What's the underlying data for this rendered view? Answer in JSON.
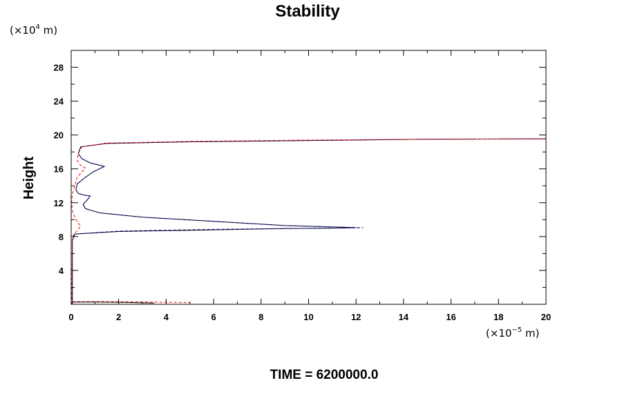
{
  "chart_data": {
    "type": "line",
    "title": "Stability",
    "ylabel": "Height",
    "y_unit_prefix": "(×10",
    "y_unit_exp": "4",
    "y_unit_suffix": " m)",
    "x_unit_prefix": "(×10",
    "x_unit_exp": "−5",
    "x_unit_suffix": " m)",
    "footer": "TIME = 6200000.0",
    "xlim": [
      0,
      20
    ],
    "ylim": [
      0,
      30
    ],
    "x_ticks": [
      0,
      2,
      4,
      6,
      8,
      10,
      12,
      14,
      16,
      18,
      20
    ],
    "y_ticks": [
      4,
      8,
      12,
      16,
      20,
      24,
      28
    ],
    "grid": false,
    "series": [
      {
        "color": "#000000",
        "style": "solid",
        "points": [
          [
            0.05,
            0
          ],
          [
            0.05,
            7.5
          ],
          [
            0.15,
            8.3
          ],
          [
            2,
            8.6
          ],
          [
            6,
            8.8
          ],
          [
            9,
            8.95
          ],
          [
            11,
            9.0
          ],
          [
            12,
            9.05
          ],
          [
            11.5,
            9.1
          ],
          [
            9,
            9.3
          ],
          [
            6,
            9.8
          ],
          [
            3,
            10.3
          ],
          [
            1.2,
            10.8
          ],
          [
            0.6,
            11.3
          ],
          [
            0.5,
            11.8
          ],
          [
            0.7,
            12.4
          ],
          [
            0.8,
            12.8
          ],
          [
            0.55,
            12.9
          ],
          [
            0.3,
            13.1
          ],
          [
            0.2,
            13.5
          ],
          [
            0.25,
            14.2
          ],
          [
            0.5,
            14.8
          ],
          [
            0.9,
            15.6
          ],
          [
            1.4,
            16.3
          ],
          [
            0.8,
            16.7
          ],
          [
            0.45,
            17.2
          ],
          [
            0.3,
            17.8
          ],
          [
            0.4,
            18.6
          ],
          [
            1.5,
            19.0
          ],
          [
            5,
            19.2
          ],
          [
            10,
            19.35
          ],
          [
            15,
            19.5
          ],
          [
            20,
            19.55
          ]
        ]
      },
      {
        "color": "#00008b",
        "style": "dashed",
        "points": [
          [
            0.05,
            0
          ],
          [
            0.05,
            7.5
          ],
          [
            0.15,
            8.3
          ],
          [
            2,
            8.65
          ],
          [
            6,
            8.85
          ],
          [
            9,
            8.95
          ],
          [
            11,
            9.0
          ],
          [
            12.3,
            9.05
          ],
          [
            11.5,
            9.1
          ],
          [
            9,
            9.3
          ],
          [
            6,
            9.8
          ],
          [
            3,
            10.3
          ],
          [
            1.2,
            10.8
          ],
          [
            0.6,
            11.3
          ],
          [
            0.5,
            11.8
          ],
          [
            0.7,
            12.4
          ],
          [
            0.8,
            12.8
          ],
          [
            0.55,
            12.9
          ],
          [
            0.3,
            13.1
          ],
          [
            0.2,
            13.5
          ],
          [
            0.25,
            14.2
          ],
          [
            0.5,
            14.8
          ],
          [
            0.9,
            15.6
          ],
          [
            1.4,
            16.3
          ],
          [
            0.8,
            16.7
          ],
          [
            0.45,
            17.2
          ],
          [
            0.3,
            17.8
          ],
          [
            0.4,
            18.6
          ],
          [
            1.5,
            19.0
          ],
          [
            5,
            19.2
          ],
          [
            10,
            19.35
          ],
          [
            15,
            19.5
          ],
          [
            20,
            19.55
          ]
        ]
      },
      {
        "color": "#00008b",
        "style": "dashed",
        "points": [
          [
            0.0,
            0
          ],
          [
            0.0,
            30
          ]
        ]
      },
      {
        "color": "#ff0000",
        "style": "dashed",
        "points": [
          [
            0.02,
            0
          ],
          [
            0.05,
            8
          ],
          [
            0.4,
            9.2
          ],
          [
            0.2,
            10
          ],
          [
            0.05,
            11
          ],
          [
            0.02,
            12
          ],
          [
            0.05,
            13
          ],
          [
            0.15,
            14
          ],
          [
            0.25,
            15
          ],
          [
            0.6,
            16.1
          ],
          [
            0.4,
            16.4
          ],
          [
            0.25,
            17
          ],
          [
            0.3,
            17.8
          ],
          [
            0.45,
            18.6
          ],
          [
            1.5,
            19.05
          ],
          [
            5,
            19.25
          ],
          [
            10,
            19.4
          ],
          [
            15,
            19.5
          ],
          [
            20,
            19.55
          ]
        ]
      },
      {
        "color": "#ff0000",
        "style": "dashed",
        "points": [
          [
            0.05,
            0.3
          ],
          [
            1,
            0.32
          ],
          [
            2,
            0.3
          ],
          [
            3,
            0.28
          ],
          [
            4,
            0.24
          ],
          [
            5,
            0.2
          ]
        ]
      },
      {
        "color": "#000000",
        "style": "solid",
        "points": [
          [
            0.05,
            0.25
          ],
          [
            1,
            0.27
          ],
          [
            2,
            0.24
          ],
          [
            3.5,
            0.15
          ]
        ]
      }
    ]
  }
}
